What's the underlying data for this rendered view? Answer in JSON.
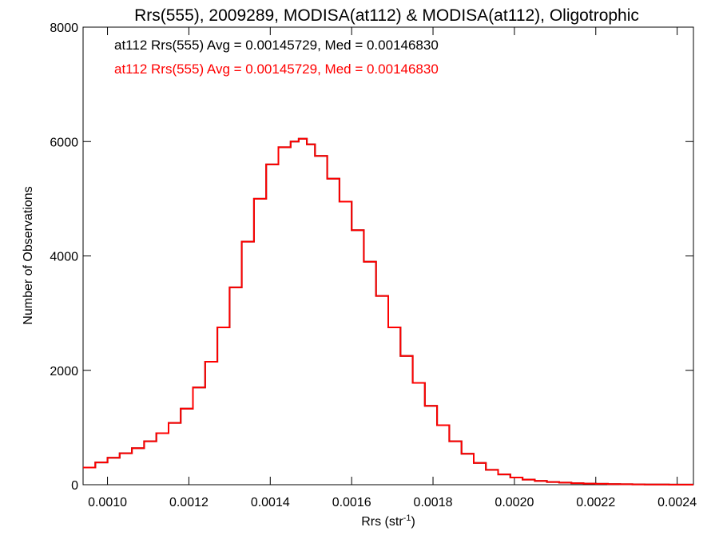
{
  "chart_data": {
    "type": "line",
    "step": true,
    "title": "Rrs(555), 2009289, MODISA(at112) & MODISA(at112), Oligotrophic",
    "xlabel": "Rrs (str",
    "xlabel_sup": "-1",
    "xlabel_suffix": ")",
    "ylabel": "Number of Observations",
    "xlim": [
      0.00094,
      0.00244
    ],
    "ylim": [
      0,
      8000
    ],
    "x_ticks": [
      0.001,
      0.0012,
      0.0014,
      0.0016,
      0.0018,
      0.002,
      0.0022,
      0.0024
    ],
    "x_tick_labels": [
      "0.0010",
      "0.0012",
      "0.0014",
      "0.0016",
      "0.0018",
      "0.0020",
      "0.0022",
      "0.0024"
    ],
    "y_ticks": [
      0,
      2000,
      4000,
      6000,
      8000
    ],
    "y_tick_labels": [
      "0",
      "2000",
      "4000",
      "6000",
      "8000"
    ],
    "annotations": [
      {
        "text": "at112 Rrs(555) Avg = 0.00145729, Med = 0.00146830",
        "color": "#000000"
      },
      {
        "text": "at112 Rrs(555) Avg = 0.00145729, Med = 0.00146830",
        "color": "#ff0000"
      }
    ],
    "series": [
      {
        "color": "#000000",
        "x": [
          0.00094,
          0.00097,
          0.001,
          0.00103,
          0.00106,
          0.00109,
          0.00112,
          0.00115,
          0.00118,
          0.00121,
          0.00124,
          0.00127,
          0.0013,
          0.00133,
          0.00136,
          0.00139,
          0.00142,
          0.00145,
          0.00147,
          0.00149,
          0.00151,
          0.00154,
          0.00157,
          0.0016,
          0.00163,
          0.00166,
          0.00169,
          0.00172,
          0.00175,
          0.00178,
          0.00181,
          0.00184,
          0.00187,
          0.0019,
          0.00193,
          0.00196,
          0.00199,
          0.00202,
          0.00205,
          0.00208,
          0.00211,
          0.00214,
          0.00217,
          0.0022,
          0.00223,
          0.00226,
          0.00229,
          0.00232,
          0.00235,
          0.00238,
          0.00241,
          0.00244
        ],
        "values": [
          300,
          390,
          470,
          550,
          640,
          760,
          900,
          1080,
          1330,
          1700,
          2150,
          2750,
          3450,
          4250,
          5000,
          5600,
          5900,
          6000,
          6050,
          5950,
          5750,
          5350,
          4950,
          4450,
          3900,
          3300,
          2750,
          2250,
          1780,
          1380,
          1040,
          760,
          540,
          380,
          260,
          180,
          125,
          90,
          65,
          48,
          36,
          27,
          20,
          15,
          11,
          8,
          6,
          4,
          3,
          2,
          1,
          1
        ]
      },
      {
        "color": "#ff0000",
        "x": [
          0.00094,
          0.00097,
          0.001,
          0.00103,
          0.00106,
          0.00109,
          0.00112,
          0.00115,
          0.00118,
          0.00121,
          0.00124,
          0.00127,
          0.0013,
          0.00133,
          0.00136,
          0.00139,
          0.00142,
          0.00145,
          0.00147,
          0.00149,
          0.00151,
          0.00154,
          0.00157,
          0.0016,
          0.00163,
          0.00166,
          0.00169,
          0.00172,
          0.00175,
          0.00178,
          0.00181,
          0.00184,
          0.00187,
          0.0019,
          0.00193,
          0.00196,
          0.00199,
          0.00202,
          0.00205,
          0.00208,
          0.00211,
          0.00214,
          0.00217,
          0.0022,
          0.00223,
          0.00226,
          0.00229,
          0.00232,
          0.00235,
          0.00238,
          0.00241,
          0.00244
        ],
        "values": [
          300,
          390,
          470,
          550,
          640,
          760,
          900,
          1080,
          1330,
          1700,
          2150,
          2750,
          3450,
          4250,
          5000,
          5600,
          5900,
          6000,
          6050,
          5950,
          5750,
          5350,
          4950,
          4450,
          3900,
          3300,
          2750,
          2250,
          1780,
          1380,
          1040,
          760,
          540,
          380,
          260,
          180,
          125,
          90,
          65,
          48,
          36,
          27,
          20,
          15,
          11,
          8,
          6,
          4,
          3,
          2,
          1,
          1
        ]
      }
    ]
  }
}
